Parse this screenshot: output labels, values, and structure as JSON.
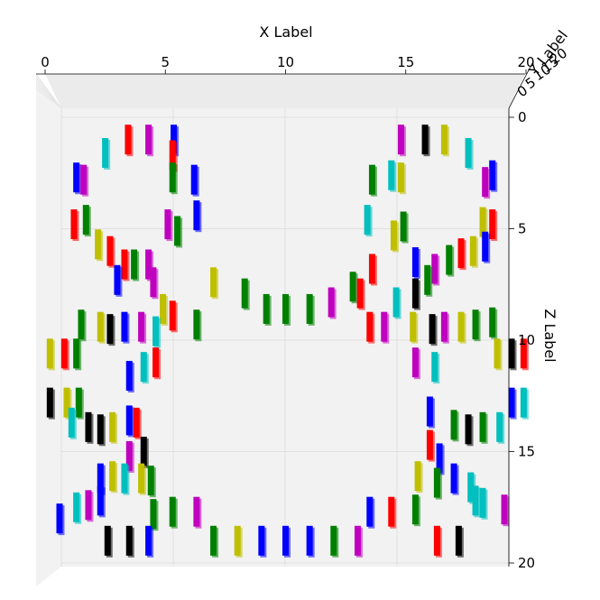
{
  "chart_data": {
    "type": "bar3d",
    "view": "top-down",
    "xlabel": "X Label",
    "ylabel": "Y Label",
    "zlabel": "Z Label",
    "xlim": [
      0,
      20
    ],
    "zlim": [
      0,
      20
    ],
    "x_ticks": [
      "0",
      "5",
      "10",
      "15",
      "20"
    ],
    "z_ticks": [
      "0",
      "5",
      "10",
      "15",
      "20"
    ],
    "y_ticks_visible": [
      "0",
      "5",
      "10",
      "15",
      "20"
    ],
    "grid": true,
    "colors": {
      "r": "#ff0000",
      "g": "#008000",
      "b": "#0000ff",
      "c": "#00bfbf",
      "m": "#bf00bf",
      "y": "#bfbf00",
      "k": "#000000"
    },
    "bars": [
      {
        "x": 3.45,
        "z": 1.0,
        "c": "r"
      },
      {
        "x": 4.3,
        "z": 1.0,
        "c": "m"
      },
      {
        "x": 5.35,
        "z": 1.0,
        "c": "b"
      },
      {
        "x": 14.8,
        "z": 1.0,
        "c": "m"
      },
      {
        "x": 15.8,
        "z": 1.0,
        "c": "k"
      },
      {
        "x": 16.6,
        "z": 1.0,
        "c": "y"
      },
      {
        "x": 2.5,
        "z": 1.6,
        "c": "c"
      },
      {
        "x": 5.3,
        "z": 1.7,
        "c": "r"
      },
      {
        "x": 17.6,
        "z": 1.6,
        "c": "c"
      },
      {
        "x": 1.3,
        "z": 2.7,
        "c": "b"
      },
      {
        "x": 1.6,
        "z": 2.8,
        "c": "m"
      },
      {
        "x": 5.3,
        "z": 2.7,
        "c": "g"
      },
      {
        "x": 6.2,
        "z": 2.8,
        "c": "b"
      },
      {
        "x": 13.6,
        "z": 2.8,
        "c": "g"
      },
      {
        "x": 14.4,
        "z": 2.6,
        "c": "c"
      },
      {
        "x": 14.8,
        "z": 2.7,
        "c": "y"
      },
      {
        "x": 18.6,
        "z": 2.6,
        "c": "b"
      },
      {
        "x": 18.3,
        "z": 2.9,
        "c": "m"
      },
      {
        "x": 1.2,
        "z": 4.8,
        "c": "r"
      },
      {
        "x": 1.7,
        "z": 4.6,
        "c": "g"
      },
      {
        "x": 5.1,
        "z": 4.8,
        "c": "m"
      },
      {
        "x": 5.5,
        "z": 5.1,
        "c": "g"
      },
      {
        "x": 6.3,
        "z": 4.4,
        "c": "b"
      },
      {
        "x": 13.4,
        "z": 4.6,
        "c": "c"
      },
      {
        "x": 14.5,
        "z": 5.3,
        "c": "y"
      },
      {
        "x": 14.9,
        "z": 4.9,
        "c": "g"
      },
      {
        "x": 18.2,
        "z": 4.7,
        "c": "y"
      },
      {
        "x": 18.6,
        "z": 4.8,
        "c": "r"
      },
      {
        "x": 2.2,
        "z": 5.7,
        "c": "y"
      },
      {
        "x": 2.7,
        "z": 6.0,
        "c": "r"
      },
      {
        "x": 3.3,
        "z": 6.6,
        "c": "r"
      },
      {
        "x": 3.7,
        "z": 6.6,
        "c": "g"
      },
      {
        "x": 4.3,
        "z": 6.6,
        "c": "m"
      },
      {
        "x": 4.5,
        "z": 7.4,
        "c": "m"
      },
      {
        "x": 7.0,
        "z": 7.4,
        "c": "y"
      },
      {
        "x": 8.3,
        "z": 7.9,
        "c": "g"
      },
      {
        "x": 9.2,
        "z": 8.6,
        "c": "g"
      },
      {
        "x": 10.0,
        "z": 8.6,
        "c": "g"
      },
      {
        "x": 11.0,
        "z": 8.6,
        "c": "g"
      },
      {
        "x": 11.9,
        "z": 8.3,
        "c": "m"
      },
      {
        "x": 12.8,
        "z": 7.6,
        "c": "g"
      },
      {
        "x": 13.6,
        "z": 6.8,
        "c": "r"
      },
      {
        "x": 13.1,
        "z": 7.9,
        "c": "r"
      },
      {
        "x": 14.6,
        "z": 8.3,
        "c": "c"
      },
      {
        "x": 15.4,
        "z": 7.9,
        "c": "k"
      },
      {
        "x": 16.2,
        "z": 6.8,
        "c": "m"
      },
      {
        "x": 16.8,
        "z": 6.4,
        "c": "g"
      },
      {
        "x": 17.3,
        "z": 6.1,
        "c": "r"
      },
      {
        "x": 17.8,
        "z": 6.0,
        "c": "y"
      },
      {
        "x": 18.3,
        "z": 5.8,
        "c": "b"
      },
      {
        "x": 15.4,
        "z": 6.5,
        "c": "b"
      },
      {
        "x": 15.9,
        "z": 7.3,
        "c": "g"
      },
      {
        "x": 3.0,
        "z": 7.3,
        "c": "b"
      },
      {
        "x": 4.9,
        "z": 8.6,
        "c": "y"
      },
      {
        "x": 5.3,
        "z": 8.9,
        "c": "r"
      },
      {
        "x": 6.3,
        "z": 9.3,
        "c": "g"
      },
      {
        "x": 1.5,
        "z": 9.3,
        "c": "g"
      },
      {
        "x": 2.3,
        "z": 9.4,
        "c": "y"
      },
      {
        "x": 2.7,
        "z": 9.5,
        "c": "k"
      },
      {
        "x": 3.3,
        "z": 9.4,
        "c": "b"
      },
      {
        "x": 4.0,
        "z": 9.4,
        "c": "m"
      },
      {
        "x": 4.6,
        "z": 9.6,
        "c": "c"
      },
      {
        "x": 13.5,
        "z": 9.4,
        "c": "r"
      },
      {
        "x": 14.1,
        "z": 9.4,
        "c": "m"
      },
      {
        "x": 15.3,
        "z": 9.4,
        "c": "y"
      },
      {
        "x": 16.1,
        "z": 9.5,
        "c": "k"
      },
      {
        "x": 16.6,
        "z": 9.4,
        "c": "m"
      },
      {
        "x": 17.3,
        "z": 9.4,
        "c": "y"
      },
      {
        "x": 17.9,
        "z": 9.3,
        "c": "g"
      },
      {
        "x": 18.6,
        "z": 9.2,
        "c": "g"
      },
      {
        "x": 0.2,
        "z": 10.6,
        "c": "y"
      },
      {
        "x": 0.8,
        "z": 10.6,
        "c": "r"
      },
      {
        "x": 1.3,
        "z": 10.6,
        "c": "g"
      },
      {
        "x": 3.5,
        "z": 11.6,
        "c": "b"
      },
      {
        "x": 4.1,
        "z": 11.2,
        "c": "c"
      },
      {
        "x": 4.6,
        "z": 11.0,
        "c": "r"
      },
      {
        "x": 15.4,
        "z": 11.0,
        "c": "m"
      },
      {
        "x": 16.2,
        "z": 11.2,
        "c": "c"
      },
      {
        "x": 18.8,
        "z": 10.6,
        "c": "y"
      },
      {
        "x": 19.4,
        "z": 10.6,
        "c": "k"
      },
      {
        "x": 19.9,
        "z": 10.6,
        "c": "r"
      },
      {
        "x": 0.2,
        "z": 12.8,
        "c": "k"
      },
      {
        "x": 0.9,
        "z": 12.8,
        "c": "y"
      },
      {
        "x": 1.4,
        "z": 12.8,
        "c": "g"
      },
      {
        "x": 1.1,
        "z": 13.7,
        "c": "c"
      },
      {
        "x": 1.8,
        "z": 13.9,
        "c": "k"
      },
      {
        "x": 2.3,
        "z": 14.0,
        "c": "k"
      },
      {
        "x": 2.8,
        "z": 13.9,
        "c": "y"
      },
      {
        "x": 3.5,
        "z": 13.6,
        "c": "b"
      },
      {
        "x": 3.8,
        "z": 13.7,
        "c": "r"
      },
      {
        "x": 16.0,
        "z": 13.2,
        "c": "b"
      },
      {
        "x": 17.0,
        "z": 13.8,
        "c": "g"
      },
      {
        "x": 17.6,
        "z": 14.0,
        "c": "k"
      },
      {
        "x": 18.2,
        "z": 13.9,
        "c": "g"
      },
      {
        "x": 18.9,
        "z": 13.9,
        "c": "c"
      },
      {
        "x": 19.4,
        "z": 12.8,
        "c": "b"
      },
      {
        "x": 19.9,
        "z": 12.8,
        "c": "c"
      },
      {
        "x": 3.5,
        "z": 15.2,
        "c": "m"
      },
      {
        "x": 4.1,
        "z": 15.0,
        "c": "k"
      },
      {
        "x": 16.0,
        "z": 14.7,
        "c": "r"
      },
      {
        "x": 16.4,
        "z": 15.3,
        "c": "b"
      },
      {
        "x": 2.3,
        "z": 16.2,
        "c": "b"
      },
      {
        "x": 2.8,
        "z": 16.1,
        "c": "y"
      },
      {
        "x": 3.3,
        "z": 16.2,
        "c": "c"
      },
      {
        "x": 4.0,
        "z": 16.2,
        "c": "y"
      },
      {
        "x": 4.4,
        "z": 16.3,
        "c": "g"
      },
      {
        "x": 15.5,
        "z": 16.1,
        "c": "y"
      },
      {
        "x": 16.3,
        "z": 16.4,
        "c": "g"
      },
      {
        "x": 17.0,
        "z": 16.2,
        "c": "b"
      },
      {
        "x": 17.7,
        "z": 16.6,
        "c": "c"
      },
      {
        "x": 1.3,
        "z": 17.5,
        "c": "c"
      },
      {
        "x": 1.8,
        "z": 17.4,
        "c": "m"
      },
      {
        "x": 2.3,
        "z": 17.2,
        "c": "b"
      },
      {
        "x": 4.5,
        "z": 17.8,
        "c": "g"
      },
      {
        "x": 5.3,
        "z": 17.7,
        "c": "g"
      },
      {
        "x": 6.3,
        "z": 17.7,
        "c": "m"
      },
      {
        "x": 13.5,
        "z": 17.7,
        "c": "b"
      },
      {
        "x": 14.4,
        "z": 17.7,
        "c": "r"
      },
      {
        "x": 15.4,
        "z": 17.6,
        "c": "g"
      },
      {
        "x": 17.9,
        "z": 17.2,
        "c": "c"
      },
      {
        "x": 18.2,
        "z": 17.3,
        "c": "c"
      },
      {
        "x": 19.1,
        "z": 17.6,
        "c": "m"
      },
      {
        "x": 0.6,
        "z": 18.0,
        "c": "b"
      },
      {
        "x": 2.6,
        "z": 19.0,
        "c": "k"
      },
      {
        "x": 3.5,
        "z": 19.0,
        "c": "k"
      },
      {
        "x": 4.3,
        "z": 19.0,
        "c": "b"
      },
      {
        "x": 7.0,
        "z": 19.0,
        "c": "g"
      },
      {
        "x": 8.0,
        "z": 19.0,
        "c": "y"
      },
      {
        "x": 9.0,
        "z": 19.0,
        "c": "b"
      },
      {
        "x": 10.0,
        "z": 19.0,
        "c": "b"
      },
      {
        "x": 11.0,
        "z": 19.0,
        "c": "b"
      },
      {
        "x": 12.0,
        "z": 19.0,
        "c": "g"
      },
      {
        "x": 13.0,
        "z": 19.0,
        "c": "m"
      },
      {
        "x": 16.3,
        "z": 19.0,
        "c": "r"
      },
      {
        "x": 17.2,
        "z": 19.0,
        "c": "k"
      }
    ]
  }
}
